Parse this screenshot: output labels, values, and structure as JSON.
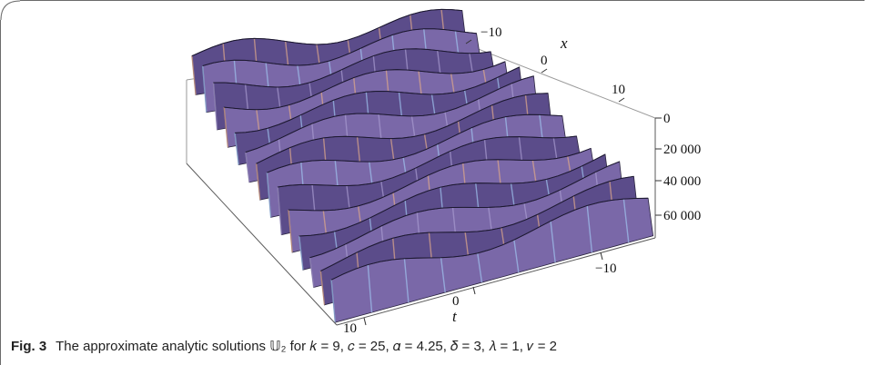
{
  "figure": {
    "label": "Fig. 3",
    "caption_text": "The approximate analytic solutions 𝕌₂ for 𝑘 = 9, 𝑐 = 25, 𝛼 = 4.25, 𝛿 = 3, 𝜆 = 1, 𝜈 = 2"
  },
  "plot": {
    "x_axis_label": "x",
    "x_ticks": [
      "−10",
      "0",
      "10"
    ],
    "t_axis_label": "t",
    "t_ticks": [
      "−10",
      "0",
      "10"
    ],
    "z_ticks": [
      "0",
      "20 000",
      "40 000",
      "60 000"
    ],
    "surface_colors": [
      "#5b4c8a",
      "#7a68a8",
      "#a89bd0",
      "#e0a98a",
      "#9fc3ee"
    ]
  }
}
